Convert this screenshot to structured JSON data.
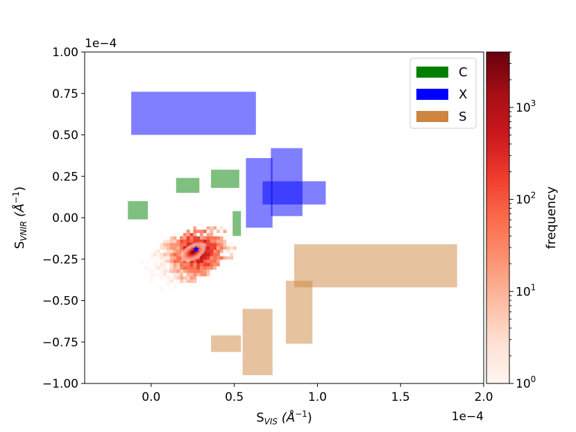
{
  "chart_data": {
    "type": "heatmap",
    "xlabel": "S",
    "xlabel_sub": "VIS",
    "xlabel_units": "(Å",
    "xlabel_units_sup": "−1",
    "xlabel_units_end": ")",
    "ylabel": "S",
    "ylabel_sub": "VNIR",
    "ylabel_units": "(Å",
    "ylabel_units_sup": "−1",
    "ylabel_units_end": ")",
    "x_offset_label": "1e−4",
    "y_offset_label": "1e−4",
    "xlim": [
      -0.4,
      2.0
    ],
    "ylim": [
      -1.0,
      1.0
    ],
    "xticks": [
      {
        "value": 0.0,
        "label": "0.0"
      },
      {
        "value": 0.5,
        "label": "0.5"
      },
      {
        "value": 1.0,
        "label": "1.0"
      },
      {
        "value": 1.5,
        "label": "1.5"
      },
      {
        "value": 2.0,
        "label": "2.0"
      }
    ],
    "yticks": [
      {
        "value": 1.0,
        "label": "1.00"
      },
      {
        "value": 0.75,
        "label": "0.75"
      },
      {
        "value": 0.5,
        "label": "0.50"
      },
      {
        "value": 0.25,
        "label": "0.25"
      },
      {
        "value": 0.0,
        "label": "0.00"
      },
      {
        "value": -0.25,
        "label": "−0.25"
      },
      {
        "value": -0.5,
        "label": "−0.50"
      },
      {
        "value": -0.75,
        "label": "−0.75"
      },
      {
        "value": -1.0,
        "label": "−1.00"
      }
    ],
    "legend": {
      "placement": "top-right",
      "entries": [
        {
          "label": "C",
          "color": "#008000"
        },
        {
          "label": "X",
          "color": "#0000ff"
        },
        {
          "label": "S",
          "color": "#cd853f"
        }
      ]
    },
    "regions": [
      {
        "class": "X",
        "x": [
          -0.12,
          0.63
        ],
        "y": [
          0.5,
          0.76
        ]
      },
      {
        "class": "X",
        "x": [
          0.57,
          0.73
        ],
        "y": [
          -0.06,
          0.36
        ]
      },
      {
        "class": "X",
        "x": [
          0.72,
          0.91
        ],
        "y": [
          0.01,
          0.42
        ]
      },
      {
        "class": "X",
        "x": [
          0.67,
          1.05
        ],
        "y": [
          0.08,
          0.22
        ]
      },
      {
        "class": "C",
        "x": [
          -0.14,
          -0.02
        ],
        "y": [
          -0.01,
          0.1
        ]
      },
      {
        "class": "C",
        "x": [
          0.15,
          0.29
        ],
        "y": [
          0.15,
          0.24
        ]
      },
      {
        "class": "C",
        "x": [
          0.36,
          0.53
        ],
        "y": [
          0.18,
          0.29
        ]
      },
      {
        "class": "C",
        "x": [
          0.49,
          0.54
        ],
        "y": [
          -0.11,
          0.04
        ]
      },
      {
        "class": "S",
        "x": [
          0.86,
          1.84
        ],
        "y": [
          -0.42,
          -0.16
        ]
      },
      {
        "class": "S",
        "x": [
          0.81,
          0.97
        ],
        "y": [
          -0.76,
          -0.38
        ]
      },
      {
        "class": "S",
        "x": [
          0.55,
          0.73
        ],
        "y": [
          -0.95,
          -0.55
        ]
      },
      {
        "class": "S",
        "x": [
          0.36,
          0.54
        ],
        "y": [
          -0.81,
          -0.71
        ]
      }
    ],
    "region_alpha": 0.5,
    "star": {
      "x": 0.27,
      "y": -0.19,
      "color": "#0000ff"
    },
    "density": {
      "peak_x": 0.27,
      "peak_y": -0.19,
      "note_color_max": "#67000d"
    },
    "colorbar": {
      "label": "frequency",
      "scale": "log",
      "min": 1,
      "max": 4000,
      "ticks": [
        {
          "value": 1,
          "label": "10",
          "sup": "0"
        },
        {
          "value": 10,
          "label": "10",
          "sup": "1"
        },
        {
          "value": 100,
          "label": "10",
          "sup": "2"
        },
        {
          "value": 1000,
          "label": "10",
          "sup": "3"
        }
      ],
      "colors": [
        "#fff5f0",
        "#fee0d2",
        "#fcbba1",
        "#fc9272",
        "#fb6a4a",
        "#ef3b2c",
        "#cb181d",
        "#a50f15",
        "#67000d"
      ]
    }
  }
}
